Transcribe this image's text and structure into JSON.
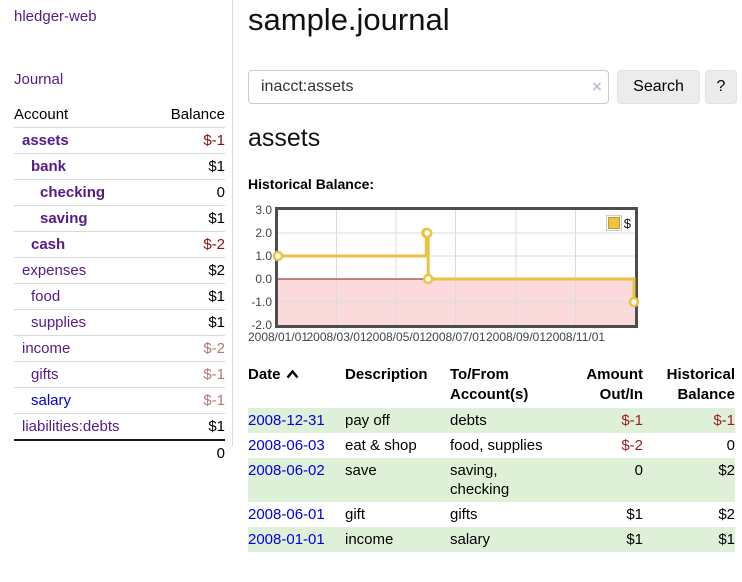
{
  "app": {
    "title": "hledger-web"
  },
  "sidebar": {
    "journal_link": "Journal",
    "table": {
      "account_header": "Account",
      "balance_header": "Balance",
      "rows": [
        {
          "name": "assets",
          "balance": "$-1",
          "depth": 1,
          "bold": true,
          "neg": "strong",
          "link": "purple"
        },
        {
          "name": "bank",
          "balance": "$1",
          "depth": 2,
          "bold": true,
          "neg": null,
          "link": "purple"
        },
        {
          "name": "checking",
          "balance": "0",
          "depth": 3,
          "bold": true,
          "neg": null,
          "link": "purple"
        },
        {
          "name": "saving",
          "balance": "$1",
          "depth": 3,
          "bold": true,
          "neg": null,
          "link": "purple"
        },
        {
          "name": "cash",
          "balance": "$-2",
          "depth": 2,
          "bold": true,
          "neg": "strong",
          "link": "purple"
        },
        {
          "name": "expenses",
          "balance": "$2",
          "depth": 1,
          "bold": false,
          "neg": null,
          "link": "purple"
        },
        {
          "name": "food",
          "balance": "$1",
          "depth": 2,
          "bold": false,
          "neg": null,
          "link": "purple"
        },
        {
          "name": "supplies",
          "balance": "$1",
          "depth": 2,
          "bold": false,
          "neg": null,
          "link": "purple"
        },
        {
          "name": "income",
          "balance": "$-2",
          "depth": 1,
          "bold": false,
          "neg": "soft",
          "link": "purple"
        },
        {
          "name": "gifts",
          "balance": "$-1",
          "depth": 2,
          "bold": false,
          "neg": "soft",
          "link": "purple"
        },
        {
          "name": "salary",
          "balance": "$-1",
          "depth": 2,
          "bold": false,
          "neg": "soft",
          "link": "blue"
        },
        {
          "name": "liabilities:debts",
          "balance": "$1",
          "depth": 1,
          "bold": false,
          "neg": null,
          "link": "purple"
        }
      ],
      "total": "0"
    }
  },
  "header": {
    "title": "sample.journal"
  },
  "search": {
    "value": "inacct:assets",
    "clear_icon": "×",
    "button_label": "Search",
    "help_label": "?"
  },
  "account_page": {
    "heading": "assets",
    "chart_label": "Historical Balance:"
  },
  "chart_data": {
    "type": "line",
    "step": true,
    "title": "Historical Balance:",
    "series": [
      {
        "name": "$",
        "color": "#edc240",
        "points": [
          [
            "2008-01-01",
            1
          ],
          [
            "2008-06-01",
            2
          ],
          [
            "2008-06-02",
            2
          ],
          [
            "2008-06-03",
            0
          ],
          [
            "2008-12-31",
            -1
          ]
        ]
      }
    ],
    "xlim": [
      "2008-01-01",
      "2009-01-01"
    ],
    "ylim": [
      -2,
      3
    ],
    "y_ticks": [
      "3.0",
      "2.0",
      "1.0",
      "0.0",
      "-1.0",
      "-2.0"
    ],
    "x_ticks": [
      "2008/01/01",
      "2008/03/01",
      "2008/05/01",
      "2008/07/01",
      "2008/09/01",
      "2008/11/01"
    ],
    "legend_position": "top-right",
    "legend_label": "$",
    "below_zero_fill": "#fadada",
    "zero_line_color": "#8a1515",
    "grid_color": "#dcdcdc",
    "border_color": "#4d4d4d"
  },
  "register": {
    "columns": [
      "Date",
      "Description",
      "To/From Account(s)",
      "Amount Out/In",
      "Historical Balance"
    ],
    "rows": [
      {
        "date": "2008-12-31",
        "description": "pay off",
        "accounts": "debts",
        "amount": "$-1",
        "amount_neg": true,
        "balance": "$-1",
        "balance_neg": true
      },
      {
        "date": "2008-06-03",
        "description": "eat & shop",
        "accounts": "food, supplies",
        "amount": "$-2",
        "amount_neg": true,
        "balance": "0",
        "balance_neg": false
      },
      {
        "date": "2008-06-02",
        "description": "save",
        "accounts": "saving,\nchecking",
        "amount": "0",
        "amount_neg": false,
        "balance": "$2",
        "balance_neg": false
      },
      {
        "date": "2008-06-01",
        "description": "gift",
        "accounts": "gifts",
        "amount": "$1",
        "amount_neg": false,
        "balance": "$2",
        "balance_neg": false
      },
      {
        "date": "2008-01-01",
        "description": "income",
        "accounts": "salary",
        "amount": "$1",
        "amount_neg": false,
        "balance": "$1",
        "balance_neg": false
      }
    ]
  }
}
